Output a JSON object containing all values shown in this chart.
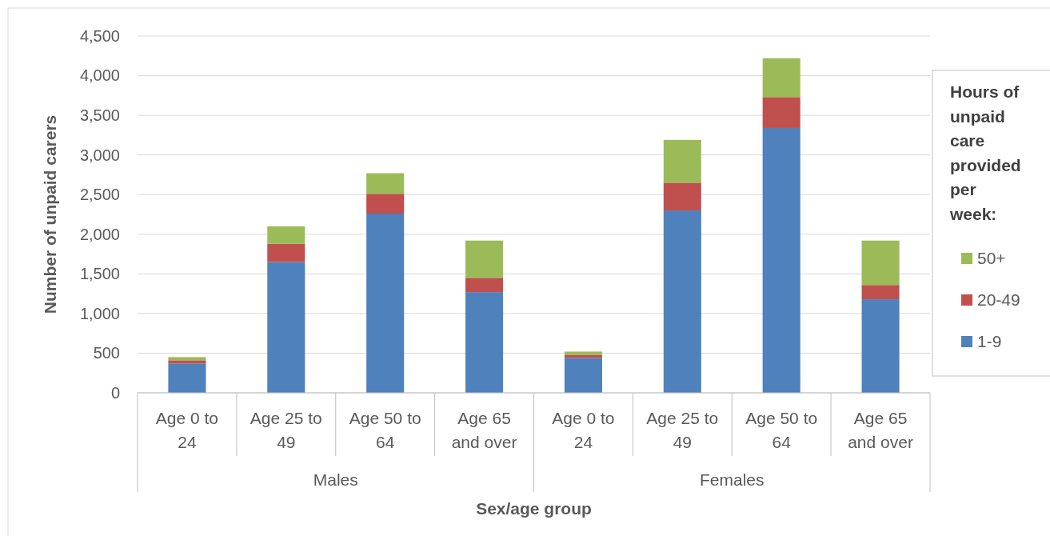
{
  "chart_data": {
    "type": "bar",
    "stacked": true,
    "xlabel": "Sex/age group",
    "ylabel": "Number of unpaid carers",
    "legend_title": "Hours of unpaid care provided per week:",
    "legend": "right",
    "grid": "y",
    "categories": [
      "Age 0 to 24",
      "Age 25 to 49",
      "Age 50 to 64",
      "Age 65 and over",
      "Age 0 to 24",
      "Age 25 to 49",
      "Age 50 to 64",
      "Age 65 and over"
    ],
    "annotations": [
      "Males",
      "Females"
    ],
    "ylim": [
      0,
      4500
    ],
    "yticks": [
      0,
      {
        "value": 500,
        "label": "500"
      },
      {
        "value": 1000,
        "label": "1,000"
      },
      {
        "value": 1500,
        "label": "1,500"
      },
      {
        "value": 2000,
        "label": "2,000"
      },
      {
        "value": 2500,
        "label": "2,500"
      },
      {
        "value": 3000,
        "label": "3,000"
      },
      {
        "value": 3500,
        "label": "3,500"
      },
      {
        "value": 4000,
        "label": "4,000"
      },
      {
        "value": 4500,
        "label": "4,500"
      }
    ],
    "series": [
      {
        "name": "1-9",
        "color": "#4f81bd",
        "values": [
          370,
          1650,
          2260,
          1270,
          440,
          2300,
          3340,
          1180
        ]
      },
      {
        "name": "20-49",
        "color": "#c0504d",
        "values": [
          40,
          230,
          250,
          180,
          40,
          350,
          390,
          180
        ]
      },
      {
        "name": "50+",
        "color": "#9bbb59",
        "values": [
          40,
          220,
          260,
          470,
          40,
          540,
          490,
          560
        ]
      }
    ]
  }
}
